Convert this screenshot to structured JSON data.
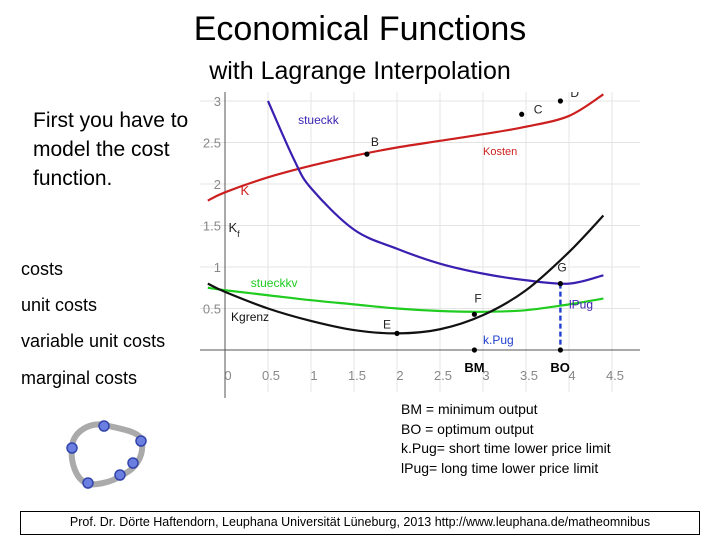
{
  "slide": {
    "title": "Economical Functions",
    "subtitle": "with Lagrange Interpolation",
    "intro": "First you have to model the cost function.",
    "legend": {
      "costs": "costs",
      "unit_costs": "unit costs",
      "variable_unit_costs": "variable unit costs",
      "marginal_costs": "marginal costs"
    },
    "notes": [
      "BM = minimum output",
      "BO = optimum output",
      "k.Pug= short time lower price limit",
      "lPug= long time lower price limit"
    ],
    "footer": "Prof. Dr. Dörte Haftendorn, Leuphana Universität Lüneburg, 2013 http://www.leuphana.de/matheomnibus"
  },
  "colors": {
    "costs": "#cc1f1f",
    "unit_costs": "#3a1fb0",
    "variable_unit_costs": "#1fcc1f",
    "marginal_costs": "#111111",
    "points": "#1a2a8c",
    "connector": "#1f3fcc"
  },
  "chart_data": {
    "type": "line",
    "xlim": [
      0,
      4.5
    ],
    "ylim": [
      0,
      3
    ],
    "x_ticks": [
      "0",
      "0.5",
      "1",
      "1.5",
      "2",
      "2.5",
      "3",
      "3.5",
      "4",
      "4.5"
    ],
    "y_ticks": [
      "0.5",
      "1",
      "1.5",
      "2",
      "2.5",
      "3"
    ],
    "grid": true,
    "series": [
      {
        "name": "Kosten",
        "x": [
          -0.2,
          0,
          0.5,
          1,
          1.5,
          2,
          2.5,
          3,
          3.5,
          4,
          4.4
        ],
        "y": [
          1.8,
          1.9,
          2.08,
          2.22,
          2.34,
          2.44,
          2.52,
          2.6,
          2.69,
          2.82,
          3.08
        ]
      },
      {
        "name": "stueckk",
        "x": [
          0.5,
          0.8,
          1,
          1.5,
          2,
          2.5,
          3,
          3.5,
          4,
          4.4
        ],
        "y": [
          3.0,
          2.3,
          1.95,
          1.45,
          1.22,
          1.04,
          0.92,
          0.84,
          0.8,
          0.9
        ]
      },
      {
        "name": "stueckkv",
        "x": [
          -0.2,
          0,
          0.5,
          1,
          1.5,
          2,
          2.5,
          3,
          3.5,
          4,
          4.4
        ],
        "y": [
          0.75,
          0.72,
          0.66,
          0.6,
          0.55,
          0.5,
          0.47,
          0.46,
          0.48,
          0.55,
          0.62
        ]
      },
      {
        "name": "Kgrenz",
        "x": [
          -0.2,
          0,
          0.5,
          1,
          1.5,
          2,
          2.5,
          3,
          3.5,
          4,
          4.4
        ],
        "y": [
          0.8,
          0.7,
          0.5,
          0.35,
          0.24,
          0.2,
          0.25,
          0.42,
          0.72,
          1.18,
          1.62
        ]
      }
    ],
    "points": [
      {
        "label": "B",
        "x": 1.65,
        "y": 2.36
      },
      {
        "label": "C",
        "x": 3.45,
        "y": 2.84
      },
      {
        "label": "D",
        "x": 3.9,
        "y": 3.0
      },
      {
        "label": "E",
        "x": 2.0,
        "y": 0.2
      },
      {
        "label": "F",
        "x": 2.9,
        "y": 0.43
      },
      {
        "label": "G",
        "x": 3.9,
        "y": 0.8
      },
      {
        "label": "BM",
        "x": 2.9,
        "y": 0
      },
      {
        "label": "BO",
        "x": 3.9,
        "y": 0
      }
    ],
    "annotations": [
      "stueckk",
      "Kosten",
      "K",
      "Kf",
      "stueckkv",
      "Kgrenz",
      "lPug",
      "k.Pug"
    ]
  }
}
